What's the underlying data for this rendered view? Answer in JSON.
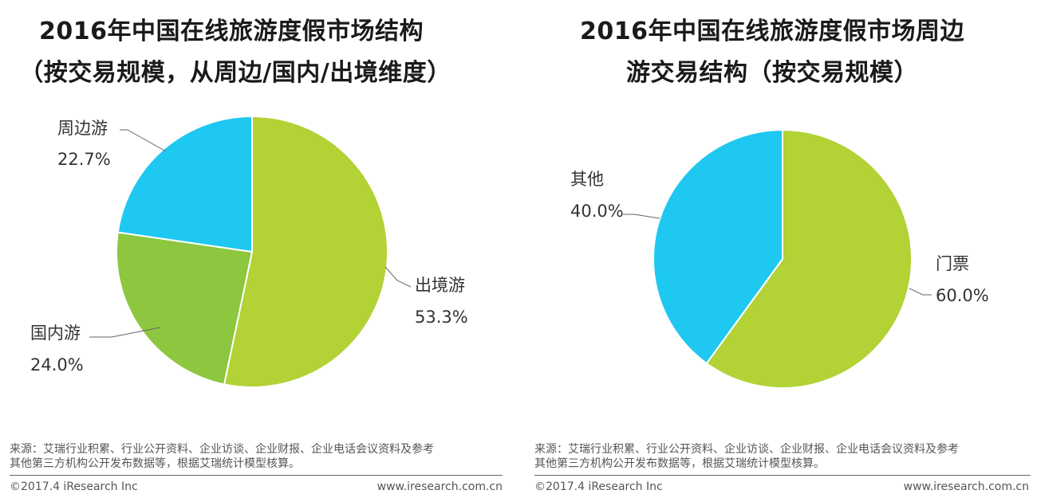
{
  "charts": [
    {
      "title_line1": "2016年中国在线旅游度假市场结构",
      "title_line2": "（按交易规模，从周边/国内/出境维度）",
      "source_line1": "来源：艾瑞行业积累、行业公开资料、企业访谈、企业财报、企业电话会议资料及参考",
      "source_line2": "其他第三方机构公开发布数据等，根据艾瑞统计模型核算。",
      "copyright": "©2017.4 iResearch Inc",
      "site": "www.iresearch.com.cn"
    },
    {
      "title_line1": "2016年中国在线旅游度假市场周边",
      "title_line2": "游交易结构（按交易规模）",
      "source_line1": "来源：艾瑞行业积累、行业公开资料、企业访谈、企业财报、企业电话会议资料及参考",
      "source_line2": "其他第三方机构公开发布数据等，根据艾瑞统计模型核算。",
      "copyright": "©2017.4 iResearch Inc",
      "site": "www.iresearch.com.cn"
    }
  ],
  "chart_data": [
    {
      "type": "pie",
      "title": "2016年中国在线旅游度假市场结构（按交易规模，从周边/国内/出境维度）",
      "slices": [
        {
          "label": "出境游",
          "value": 53.3,
          "display": "53.3%",
          "color": "#b2d235"
        },
        {
          "label": "国内游",
          "value": 24.0,
          "display": "24.0%",
          "color": "#8dc63f"
        },
        {
          "label": "周边游",
          "value": 22.7,
          "display": "22.7%",
          "color": "#1ec8f0"
        }
      ],
      "start": "12 o'clock",
      "direction": "clockwise"
    },
    {
      "type": "pie",
      "title": "2016年中国在线旅游度假市场周边游交易结构（按交易规模）",
      "slices": [
        {
          "label": "门票",
          "value": 60.0,
          "display": "60.0%",
          "color": "#b2d235"
        },
        {
          "label": "其他",
          "value": 40.0,
          "display": "40.0%",
          "color": "#1ec8f0"
        }
      ],
      "start": "12 o'clock",
      "direction": "clockwise"
    }
  ]
}
